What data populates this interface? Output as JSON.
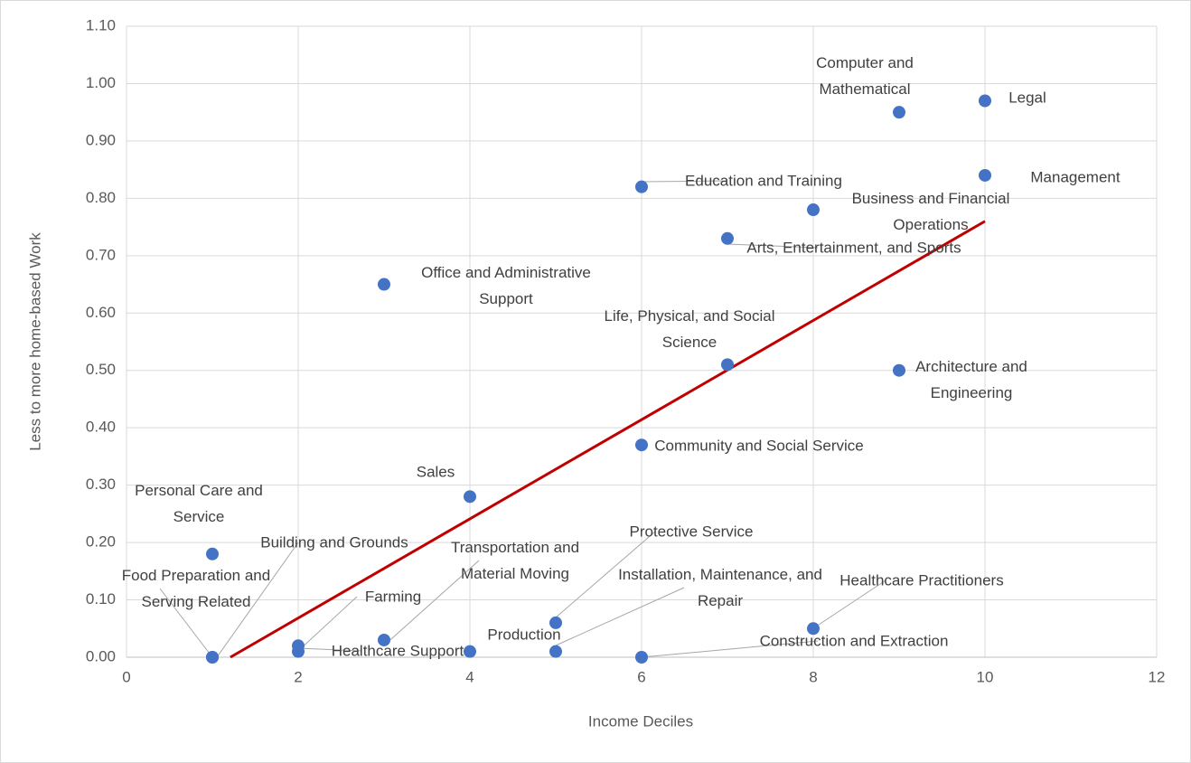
{
  "chart_data": {
    "type": "scatter",
    "x_label": "Income Deciles",
    "y_label": "Less to more home-based Work",
    "color": "#4472c4",
    "xlim": [
      0,
      12
    ],
    "xticks": [
      0,
      2,
      4,
      6,
      8,
      10,
      12
    ],
    "ylim": [
      0,
      1.1
    ],
    "yticks": [
      {
        "value": 0,
        "label": "0.00"
      },
      {
        "value": 0.1,
        "label": "0.10"
      },
      {
        "value": 0.2,
        "label": "0.20"
      },
      {
        "value": 0.3,
        "label": "0.30"
      },
      {
        "value": 0.4,
        "label": "0.40"
      },
      {
        "value": 0.5,
        "label": "0.50"
      },
      {
        "value": 0.6,
        "label": "0.60"
      },
      {
        "value": 0.7,
        "label": "0.70"
      },
      {
        "value": 0.8,
        "label": "0.80"
      },
      {
        "value": 0.9,
        "label": "0.90"
      },
      {
        "value": 1.0,
        "label": "1.00"
      },
      {
        "value": 1.1,
        "label": "1.10"
      }
    ],
    "grid": true,
    "points": [
      {
        "label": "Personal Care and Service",
        "x": 1,
        "y": 0.18
      },
      {
        "label": "Food Preparation and Serving Related",
        "x": 1,
        "y": 0.0
      },
      {
        "label": "Building and Grounds",
        "x": 1,
        "y": 0.0
      },
      {
        "label": "Farming",
        "x": 2,
        "y": 0.02
      },
      {
        "label": "Healthcare Support",
        "x": 2,
        "y": 0.01
      },
      {
        "label": "Transportation and Material Moving",
        "x": 3,
        "y": 0.03
      },
      {
        "label": "Production",
        "x": 4,
        "y": 0.01
      },
      {
        "label": "Protective Service",
        "x": 5,
        "y": 0.06
      },
      {
        "label": "Installation, Maintenance, and Repair",
        "x": 5,
        "y": 0.01
      },
      {
        "label": "Construction and Extraction",
        "x": 6,
        "y": 0.0
      },
      {
        "label": "Sales",
        "x": 4,
        "y": 0.28
      },
      {
        "label": "Office and Administrative Support",
        "x": 3,
        "y": 0.65
      },
      {
        "label": "Community and Social Service",
        "x": 6,
        "y": 0.37
      },
      {
        "label": "Education and Training",
        "x": 6,
        "y": 0.82
      },
      {
        "label": "Life, Physical, and Social Science",
        "x": 7,
        "y": 0.51
      },
      {
        "label": "Arts, Entertainment, and Sports",
        "x": 7,
        "y": 0.73
      },
      {
        "label": "Business and Financial Operations",
        "x": 8,
        "y": 0.78
      },
      {
        "label": "Healthcare Practitioners",
        "x": 8,
        "y": 0.05
      },
      {
        "label": "Architecture and Engineering",
        "x": 9,
        "y": 0.5
      },
      {
        "label": "Computer and Mathematical",
        "x": 9,
        "y": 0.95
      },
      {
        "label": "Legal",
        "x": 10,
        "y": 0.97
      },
      {
        "label": "Management",
        "x": 10,
        "y": 0.84
      }
    ],
    "trendline": {
      "x": [
        1.21,
        10
      ],
      "y": [
        0,
        0.76
      ],
      "color": "#c00000"
    }
  }
}
